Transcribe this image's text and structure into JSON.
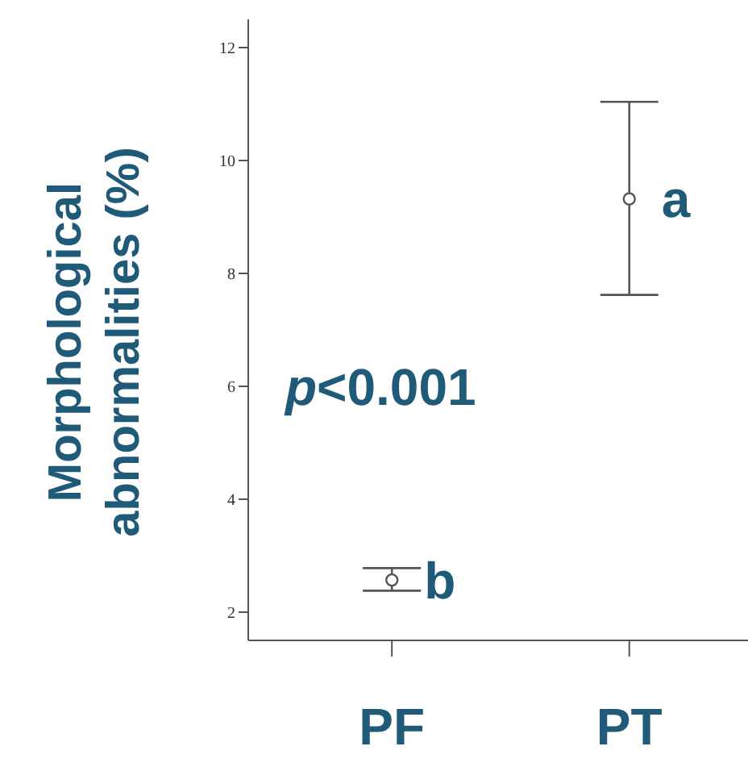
{
  "chart_data": {
    "type": "scatter",
    "ylabel": "Morphological abnormalities (%)",
    "categories": [
      "PF",
      "PT"
    ],
    "series": [
      {
        "color": "#555555",
        "values": [
          2.57,
          9.32
        ],
        "errors": [
          [
            2.38,
            2.78
          ],
          [
            7.62,
            11.04
          ]
        ]
      }
    ],
    "ylim": [
      1.5,
      12.5
    ],
    "yticks": [
      2,
      4,
      6,
      8,
      10,
      12
    ],
    "marker": "circle",
    "grid": false,
    "legend": false,
    "annotations": [
      {
        "text": "a",
        "x": "PT",
        "y": 9.32
      },
      {
        "text": "b",
        "x": "PF",
        "y": 2.57
      },
      "p<0.001"
    ]
  }
}
